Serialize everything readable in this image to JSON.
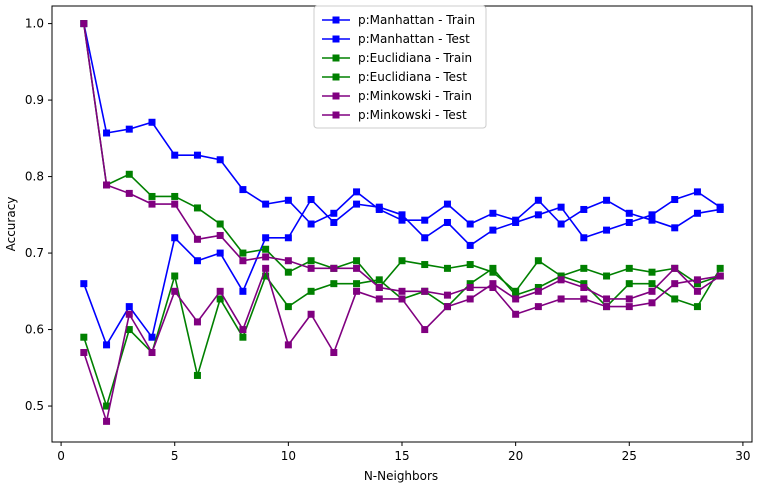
{
  "chart_data": {
    "type": "line",
    "title": "",
    "xlabel": "N-Neighbors",
    "ylabel": "Accuracy",
    "xlim": [
      -0.4,
      30.4
    ],
    "ylim": [
      0.453,
      1.023
    ],
    "xticks": [
      0,
      5,
      10,
      15,
      20,
      25,
      30
    ],
    "yticks": [
      0.5,
      0.6,
      0.7,
      0.8,
      0.9,
      1.0
    ],
    "ytick_labels": [
      "0.5",
      "0.6",
      "0.7",
      "0.8",
      "0.9",
      "1.0"
    ],
    "grid": false,
    "legend_position": "top-center",
    "x": [
      1,
      2,
      3,
      4,
      5,
      6,
      7,
      8,
      9,
      10,
      11,
      12,
      13,
      14,
      15,
      16,
      17,
      18,
      19,
      20,
      21,
      22,
      23,
      24,
      25,
      26,
      27,
      28,
      29
    ],
    "series": [
      {
        "name": "p:Manhattan - Train",
        "color": "#0000ff",
        "values": [
          1.0,
          0.857,
          0.862,
          0.871,
          0.828,
          0.828,
          0.822,
          0.783,
          0.764,
          0.769,
          0.738,
          0.752,
          0.78,
          0.757,
          0.743,
          0.743,
          0.764,
          0.738,
          0.752,
          0.743,
          0.769,
          0.738,
          0.757,
          0.769,
          0.752,
          0.743,
          0.733,
          0.752,
          0.757
        ]
      },
      {
        "name": "p:Manhattan - Test",
        "color": "#0000ff",
        "values": [
          0.66,
          0.58,
          0.63,
          0.59,
          0.72,
          0.69,
          0.7,
          0.65,
          0.72,
          0.72,
          0.77,
          0.74,
          0.764,
          0.76,
          0.75,
          0.72,
          0.74,
          0.71,
          0.73,
          0.74,
          0.75,
          0.76,
          0.72,
          0.73,
          0.74,
          0.75,
          0.77,
          0.78,
          0.76
        ]
      },
      {
        "name": "p:Euclidiana - Train",
        "color": "#008000",
        "values": [
          1.0,
          0.789,
          0.803,
          0.774,
          0.774,
          0.759,
          0.738,
          0.7,
          0.705,
          0.675,
          0.69,
          0.68,
          0.69,
          0.655,
          0.69,
          0.685,
          0.68,
          0.685,
          0.675,
          0.65,
          0.69,
          0.67,
          0.68,
          0.67,
          0.68,
          0.675,
          0.68,
          0.66,
          0.67
        ]
      },
      {
        "name": "p:Euclidiana - Test",
        "color": "#008000",
        "values": [
          0.59,
          0.5,
          0.6,
          0.57,
          0.67,
          0.54,
          0.64,
          0.59,
          0.67,
          0.63,
          0.65,
          0.66,
          0.66,
          0.665,
          0.64,
          0.65,
          0.63,
          0.66,
          0.68,
          0.645,
          0.655,
          0.67,
          0.66,
          0.63,
          0.66,
          0.66,
          0.64,
          0.63,
          0.68
        ]
      },
      {
        "name": "p:Minkowski - Train",
        "color": "#800080",
        "values": [
          1.0,
          0.789,
          0.778,
          0.764,
          0.764,
          0.718,
          0.723,
          0.69,
          0.695,
          0.69,
          0.68,
          0.68,
          0.68,
          0.655,
          0.65,
          0.65,
          0.645,
          0.655,
          0.655,
          0.62,
          0.63,
          0.64,
          0.64,
          0.63,
          0.63,
          0.635,
          0.66,
          0.665,
          0.67
        ]
      },
      {
        "name": "p:Minkowski - Test",
        "color": "#800080",
        "values": [
          0.57,
          0.48,
          0.62,
          0.57,
          0.65,
          0.61,
          0.65,
          0.6,
          0.68,
          0.58,
          0.62,
          0.57,
          0.65,
          0.64,
          0.64,
          0.6,
          0.63,
          0.64,
          0.66,
          0.64,
          0.65,
          0.665,
          0.655,
          0.64,
          0.64,
          0.65,
          0.68,
          0.65,
          0.67
        ]
      }
    ]
  }
}
